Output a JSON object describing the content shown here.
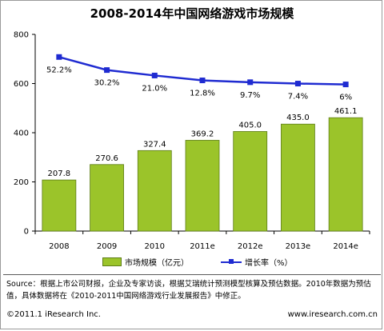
{
  "title": "2008-2014年中国网络游戏市场规模",
  "legend": {
    "bar_label": "市场规模（亿元）",
    "line_label": "增长率（%）"
  },
  "source": "Source：根据上市公司财报，企业及专家访谈，根据艾瑞统计预测模型核算及预估数据。2010年数据为预估值，具体数据将在《2010-2011中国网络游戏行业发展报告》中修正。",
  "footer": {
    "copyright": "©2011.1 iResearch Inc.",
    "website": "www.iresearch.com.cn"
  },
  "colors": {
    "bar": "#9bc42a",
    "bar_border": "#5e7d18",
    "line": "#1f2bd1"
  },
  "chart_data": {
    "type": "bar",
    "title": "2008-2014年中国网络游戏市场规模",
    "categories": [
      "2008",
      "2009",
      "2010",
      "2011e",
      "2012e",
      "2013e",
      "2014e"
    ],
    "series": [
      {
        "name": "市场规模（亿元）",
        "type": "bar",
        "values": [
          207.8,
          270.6,
          327.4,
          369.2,
          405.0,
          435.0,
          461.1
        ],
        "labels": [
          "207.8",
          "270.6",
          "327.4",
          "369.2",
          "405.0",
          "435.0",
          "461.1"
        ]
      },
      {
        "name": "增长率（%）",
        "type": "line",
        "values": [
          52.2,
          30.2,
          21.0,
          12.8,
          9.7,
          7.4,
          6
        ],
        "labels": [
          "52.2%",
          "30.2%",
          "21.0%",
          "12.8%",
          "9.7%",
          "7.4%",
          "6%"
        ]
      }
    ],
    "y_ticks": [
      "0",
      "200",
      "400",
      "600",
      "800"
    ],
    "ylim": [
      0,
      800
    ],
    "grid": false,
    "legend_position": "bottom"
  }
}
